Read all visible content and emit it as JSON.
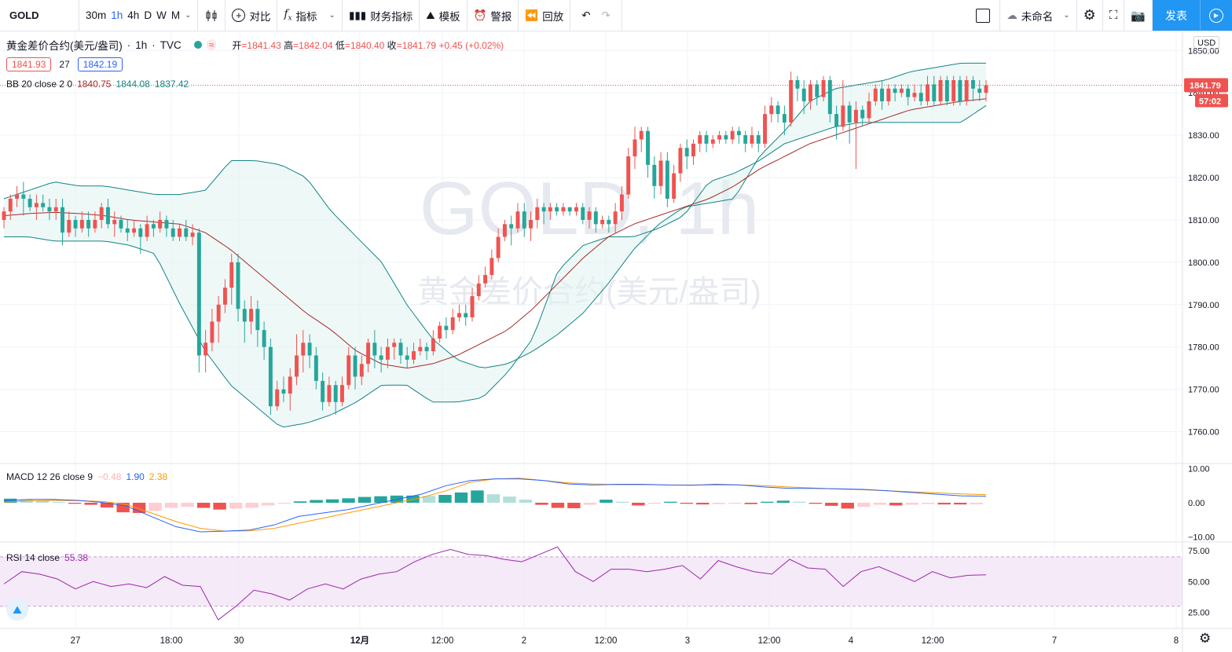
{
  "toolbar": {
    "symbol": "GOLD",
    "intervals": [
      "30m",
      "1h",
      "4h",
      "D",
      "W",
      "M"
    ],
    "active_interval": "1h",
    "compare": "对比",
    "indicators": "指标",
    "financials": "财务指标",
    "templates": "模板",
    "alert": "警报",
    "replay": "回放",
    "layout_name": "未命名",
    "publish": "发表"
  },
  "legend": {
    "title": "黄金差价合约(美元/盎司)",
    "interval": "1h",
    "source": "TVC",
    "open_label": "开",
    "open": "1841.43",
    "high_label": "高",
    "high": "1842.04",
    "low_label": "低",
    "low": "1840.40",
    "close_label": "收",
    "close": "1841.79",
    "change": "+0.45 (+0.02%)",
    "bid": "1841.93",
    "spread": "27",
    "ask": "1842.19",
    "bb_label": "BB 20 close 2 0",
    "bb_basis": "1840.75",
    "bb_upper": "1844.08",
    "bb_lower": "1837.42"
  },
  "watermark": {
    "symbol": "GOLD, 1h",
    "name": "黄金差价合约(美元/盎司)"
  },
  "macd_legend": {
    "label": "MACD 12 26 close 9",
    "hist": "−0.48",
    "macd": "1.90",
    "signal": "2.38"
  },
  "rsi_legend": {
    "label": "RSI 14 close",
    "value": "55.38"
  },
  "price_axis": {
    "currency": "USD",
    "last_price": "1841.79",
    "countdown": "57:02"
  },
  "chart_data": {
    "type": "candlestick",
    "price_ticks": [
      "1850.00",
      "1840.00",
      "1830.00",
      "1820.00",
      "1810.00",
      "1800.00",
      "1790.00",
      "1780.00",
      "1770.00",
      "1760.00"
    ],
    "price_range": [
      1752.5,
      1854.5
    ],
    "time_labels": [
      "27",
      "18:00",
      "30",
      "12月",
      "12:00",
      "2",
      "12:00",
      "3",
      "12:00",
      "4",
      "12:00",
      "7",
      "8"
    ],
    "candles": [
      [
        1810,
        1812,
        1808,
        1813
      ],
      [
        1812,
        1815,
        1810,
        1816
      ],
      [
        1815,
        1816,
        1813,
        1818
      ],
      [
        1816,
        1815,
        1811,
        1819
      ],
      [
        1815,
        1813,
        1812,
        1816
      ],
      [
        1813,
        1814,
        1810,
        1816
      ],
      [
        1814,
        1813,
        1812,
        1816
      ],
      [
        1813,
        1812,
        1810,
        1815
      ],
      [
        1812,
        1813,
        1810,
        1815
      ],
      [
        1813,
        1807,
        1804,
        1815
      ],
      [
        1807,
        1810,
        1806,
        1812
      ],
      [
        1810,
        1808,
        1806,
        1811
      ],
      [
        1808,
        1810,
        1807,
        1812
      ],
      [
        1810,
        1808,
        1806,
        1812
      ],
      [
        1808,
        1810,
        1807,
        1812
      ],
      [
        1810,
        1813,
        1808,
        1814
      ],
      [
        1813,
        1809,
        1808,
        1815
      ],
      [
        1809,
        1810,
        1806,
        1812
      ],
      [
        1810,
        1808,
        1807,
        1811
      ],
      [
        1808,
        1807,
        1805,
        1810
      ],
      [
        1807,
        1808,
        1806,
        1810
      ],
      [
        1808,
        1806,
        1802,
        1809
      ],
      [
        1806,
        1809,
        1805,
        1811
      ],
      [
        1809,
        1808,
        1806,
        1810
      ],
      [
        1808,
        1810,
        1807,
        1812
      ],
      [
        1810,
        1808,
        1806,
        1811
      ],
      [
        1808,
        1806,
        1805,
        1810
      ],
      [
        1806,
        1808,
        1805,
        1809
      ],
      [
        1808,
        1806,
        1805,
        1810
      ],
      [
        1806,
        1807,
        1804,
        1809
      ],
      [
        1807,
        1778,
        1774,
        1808
      ],
      [
        1778,
        1781,
        1774,
        1784
      ],
      [
        1781,
        1786,
        1779,
        1789
      ],
      [
        1786,
        1790,
        1781,
        1792
      ],
      [
        1790,
        1794,
        1788,
        1796
      ],
      [
        1794,
        1800,
        1790,
        1802
      ],
      [
        1800,
        1789,
        1786,
        1802
      ],
      [
        1789,
        1786,
        1781,
        1791
      ],
      [
        1786,
        1789,
        1783,
        1792
      ],
      [
        1789,
        1784,
        1780,
        1791
      ],
      [
        1784,
        1780,
        1777,
        1786
      ],
      [
        1780,
        1766,
        1764,
        1782
      ],
      [
        1766,
        1770,
        1765,
        1772
      ],
      [
        1770,
        1769,
        1767,
        1773
      ],
      [
        1769,
        1773,
        1765,
        1775
      ],
      [
        1773,
        1778,
        1771,
        1783
      ],
      [
        1778,
        1781,
        1774,
        1784
      ],
      [
        1781,
        1778,
        1775,
        1783
      ],
      [
        1778,
        1772,
        1770,
        1780
      ],
      [
        1772,
        1767,
        1765,
        1774
      ],
      [
        1767,
        1771,
        1766,
        1773
      ],
      [
        1771,
        1767,
        1764,
        1772
      ],
      [
        1767,
        1771,
        1766,
        1773
      ],
      [
        1771,
        1778,
        1770,
        1780
      ],
      [
        1778,
        1773,
        1770,
        1780
      ],
      [
        1773,
        1776,
        1771,
        1778
      ],
      [
        1776,
        1781,
        1774,
        1782
      ],
      [
        1781,
        1778,
        1775,
        1784
      ],
      [
        1778,
        1777,
        1774,
        1780
      ],
      [
        1777,
        1780,
        1775,
        1782
      ],
      [
        1780,
        1781,
        1777,
        1782
      ],
      [
        1781,
        1778,
        1776,
        1782
      ],
      [
        1778,
        1777,
        1775,
        1780
      ],
      [
        1777,
        1779,
        1776,
        1781
      ],
      [
        1779,
        1780,
        1778,
        1782
      ],
      [
        1780,
        1779,
        1777,
        1781
      ],
      [
        1779,
        1782,
        1778,
        1784
      ],
      [
        1782,
        1785,
        1781,
        1786
      ],
      [
        1785,
        1784,
        1782,
        1787
      ],
      [
        1784,
        1787,
        1783,
        1789
      ],
      [
        1787,
        1788,
        1786,
        1790
      ],
      [
        1788,
        1787,
        1785,
        1790
      ],
      [
        1787,
        1792,
        1786,
        1794
      ],
      [
        1792,
        1795,
        1791,
        1797
      ],
      [
        1795,
        1797,
        1794,
        1799
      ],
      [
        1797,
        1801,
        1796,
        1803
      ],
      [
        1801,
        1806,
        1800,
        1808
      ],
      [
        1806,
        1809,
        1805,
        1810
      ],
      [
        1809,
        1808,
        1804,
        1811
      ],
      [
        1808,
        1812,
        1807,
        1814
      ],
      [
        1812,
        1808,
        1806,
        1814
      ],
      [
        1808,
        1810,
        1805,
        1812
      ],
      [
        1810,
        1813,
        1808,
        1815
      ],
      [
        1813,
        1812,
        1809,
        1814
      ],
      [
        1812,
        1813,
        1810,
        1814
      ],
      [
        1813,
        1812,
        1811,
        1814
      ],
      [
        1812,
        1813,
        1811,
        1814
      ],
      [
        1813,
        1812,
        1811,
        1813
      ],
      [
        1812,
        1813,
        1811,
        1814
      ],
      [
        1813,
        1810,
        1809,
        1814
      ],
      [
        1810,
        1812,
        1808,
        1813
      ],
      [
        1812,
        1809,
        1807,
        1813
      ],
      [
        1809,
        1810,
        1808,
        1811
      ],
      [
        1810,
        1809,
        1807,
        1811
      ],
      [
        1809,
        1812,
        1807,
        1814
      ],
      [
        1812,
        1816,
        1810,
        1818
      ],
      [
        1816,
        1825,
        1815,
        1827
      ],
      [
        1825,
        1829,
        1822,
        1832
      ],
      [
        1829,
        1831,
        1826,
        1832
      ],
      [
        1831,
        1823,
        1820,
        1832
      ],
      [
        1823,
        1818,
        1815,
        1825
      ],
      [
        1818,
        1824,
        1816,
        1826
      ],
      [
        1824,
        1815,
        1813,
        1826
      ],
      [
        1815,
        1821,
        1814,
        1823
      ],
      [
        1821,
        1827,
        1819,
        1828
      ],
      [
        1827,
        1825,
        1822,
        1829
      ],
      [
        1825,
        1828,
        1823,
        1829
      ],
      [
        1828,
        1830,
        1826,
        1831
      ],
      [
        1830,
        1828,
        1826,
        1831
      ],
      [
        1828,
        1829,
        1827,
        1830
      ],
      [
        1829,
        1830,
        1828,
        1831
      ],
      [
        1830,
        1829,
        1828,
        1831
      ],
      [
        1829,
        1831,
        1828,
        1832
      ],
      [
        1831,
        1830,
        1828,
        1832
      ],
      [
        1830,
        1828,
        1826,
        1831
      ],
      [
        1828,
        1830,
        1827,
        1832
      ],
      [
        1830,
        1828,
        1826,
        1831
      ],
      [
        1828,
        1835,
        1827,
        1837
      ],
      [
        1835,
        1837,
        1833,
        1839
      ],
      [
        1837,
        1835,
        1833,
        1838
      ],
      [
        1835,
        1833,
        1830,
        1837
      ],
      [
        1833,
        1843,
        1832,
        1845
      ],
      [
        1843,
        1841,
        1838,
        1844
      ],
      [
        1841,
        1838,
        1835,
        1843
      ],
      [
        1838,
        1842,
        1836,
        1843
      ],
      [
        1842,
        1839,
        1837,
        1843
      ],
      [
        1839,
        1843,
        1838,
        1844
      ],
      [
        1843,
        1835,
        1833,
        1844
      ],
      [
        1835,
        1832,
        1829,
        1837
      ],
      [
        1832,
        1837,
        1831,
        1843
      ],
      [
        1837,
        1833,
        1828,
        1838
      ],
      [
        1833,
        1836,
        1822,
        1838
      ],
      [
        1836,
        1834,
        1832,
        1837
      ],
      [
        1834,
        1838,
        1833,
        1840
      ],
      [
        1838,
        1841,
        1837,
        1842
      ],
      [
        1841,
        1838,
        1836,
        1843
      ],
      [
        1838,
        1841,
        1837,
        1842
      ],
      [
        1841,
        1840,
        1838,
        1842
      ],
      [
        1840,
        1841,
        1839,
        1842
      ],
      [
        1841,
        1839,
        1837,
        1842
      ],
      [
        1839,
        1840,
        1838,
        1842
      ],
      [
        1840,
        1838,
        1837,
        1842
      ],
      [
        1838,
        1842,
        1837,
        1844
      ],
      [
        1842,
        1838,
        1837,
        1844
      ],
      [
        1838,
        1843,
        1837,
        1844
      ],
      [
        1843,
        1838,
        1837,
        1844
      ],
      [
        1838,
        1843,
        1837,
        1844
      ],
      [
        1843,
        1838,
        1837,
        1844
      ],
      [
        1838,
        1843,
        1837,
        1844
      ],
      [
        1843,
        1841,
        1838,
        1844
      ],
      [
        1841,
        1840,
        1838,
        1843
      ],
      [
        1840,
        1841.8,
        1838,
        1843
      ]
    ],
    "bb_upper": [
      1815,
      1817,
      1819,
      1818,
      1818,
      1817,
      1816,
      1816,
      1817,
      1824,
      1824,
      1823,
      1820,
      1812,
      1806,
      1800,
      1790,
      1782,
      1777,
      1775,
      1776,
      1779,
      1783,
      1788,
      1795,
      1803,
      1809,
      1813,
      1814,
      1815,
      1825,
      1831,
      1838,
      1841,
      1842,
      1843,
      1845,
      1846,
      1847,
      1847
    ],
    "bb_basis": [
      1811,
      1811.5,
      1811.8,
      1811.5,
      1811,
      1810,
      1809.5,
      1809,
      1807,
      1803,
      1798,
      1793,
      1788,
      1784,
      1779,
      1776,
      1775,
      1776,
      1778,
      1781,
      1784,
      1789,
      1795,
      1801,
      1806,
      1809,
      1811,
      1813,
      1815,
      1818,
      1822,
      1825,
      1828,
      1830,
      1832,
      1834,
      1836,
      1837,
      1838,
      1838.6
    ],
    "bb_lower": [
      1806,
      1806,
      1805,
      1805,
      1805,
      1804,
      1802,
      1790,
      1779,
      1771,
      1766,
      1761,
      1762,
      1764,
      1767,
      1771,
      1771,
      1767,
      1767,
      1768,
      1774,
      1782,
      1798,
      1804,
      1806,
      1806,
      1808,
      1811,
      1819,
      1821,
      1824,
      1828,
      1830,
      1832,
      1833,
      1833,
      1833,
      1833,
      1833,
      1837
    ],
    "macd": {
      "ticks": [
        "10.00",
        "0.00",
        "−10.00"
      ],
      "range": [
        -11.5,
        11.5
      ],
      "line": [
        0.5,
        1.0,
        1.0,
        0.7,
        0.1,
        -1,
        -4,
        -7,
        -8.5,
        -8.3,
        -8,
        -6.5,
        -4,
        -3,
        -2,
        -0.5,
        1,
        2.5,
        5,
        6.5,
        7,
        7,
        6.5,
        5.5,
        5.2,
        5.4,
        5.4,
        5.2,
        5.1,
        5.4,
        5.2,
        4.6,
        4.2,
        4.2,
        4.1,
        3.9,
        3.5,
        3.0,
        2.5,
        2.0,
        1.9
      ],
      "signal": [
        0.2,
        0.5,
        0.7,
        0.6,
        0.4,
        -0.5,
        -3,
        -5.5,
        -7.5,
        -8.3,
        -8.2,
        -7.5,
        -6,
        -4.5,
        -3,
        -1.5,
        0,
        1.5,
        3.5,
        6,
        7,
        7.2,
        6.5,
        5.8,
        5.5,
        5.3,
        5.3,
        5.2,
        5.2,
        5.2,
        5.2,
        5.0,
        4.6,
        4.3,
        4.0,
        3.8,
        3.5,
        3.2,
        2.9,
        2.6,
        2.4
      ],
      "hist": [
        1.2,
        1.0,
        0.6,
        0.2,
        -0.3,
        -0.6,
        -1.4,
        -2.8,
        -3.0,
        -2.4,
        -1.5,
        -1.2,
        -1.5,
        -2.0,
        -1.7,
        -1.5,
        -0.8,
        -0.3,
        0.4,
        0.8,
        1.0,
        1.3,
        1.7,
        1.9,
        2.1,
        2.1,
        2.0,
        2.3,
        3.0,
        3.6,
        2.5,
        1.8,
        0.9,
        -0.6,
        -1.5,
        -1.6,
        -0.6,
        0.9,
        0.3,
        -0.8,
        -0.3,
        0.3,
        -0.3,
        -0.5,
        -0.4,
        -0.3,
        -0.4,
        0.3,
        0.6,
        0.3,
        -0.3,
        -0.9,
        -1.7,
        -1.2,
        -0.6,
        -0.8,
        -0.6,
        -0.4,
        -0.5,
        -0.5,
        -0.48
      ]
    },
    "rsi": {
      "ticks": [
        "75.00",
        "50.00",
        "25.00"
      ],
      "range": [
        12,
        82
      ],
      "band": [
        30,
        70
      ],
      "values": [
        48,
        58,
        56,
        52,
        44,
        50,
        46,
        48,
        45,
        54,
        47,
        46,
        19,
        30,
        43,
        40,
        35,
        44,
        48,
        44,
        52,
        56,
        58,
        66,
        72,
        76,
        72,
        71,
        68,
        66,
        72,
        78,
        58,
        50,
        60,
        60,
        58,
        60,
        63,
        52,
        67,
        62,
        58,
        56,
        68,
        61,
        60,
        46,
        58,
        62,
        56,
        50,
        58,
        53,
        55,
        55.38
      ]
    }
  }
}
